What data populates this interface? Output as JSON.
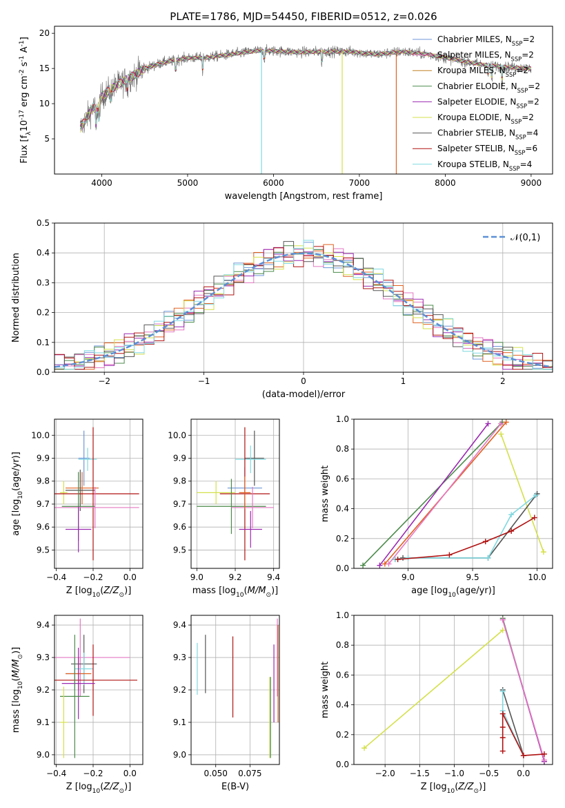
{
  "figure_title": "PLATE=1786, MJD=54450, FIBERID=0512, z=0.026",
  "chart_data": [
    {
      "id": "spectrum",
      "type": "line",
      "xlabel": "wavelength [Angstrom, rest frame]",
      "ylabel": "Flux [f$_\\lambda$10$^{-17}$ erg cm$^{-2}$ s$^{-1}$ A$^{-1}$]",
      "xlim": [
        3450,
        9250
      ],
      "ylim": [
        0,
        21
      ],
      "xticks": [
        4000,
        5000,
        6000,
        7000,
        8000,
        9000
      ],
      "yticks": [
        5,
        10,
        15,
        20
      ],
      "grid": false,
      "legend": "top-right",
      "continuum": {
        "x": [
          3750,
          3800,
          3900,
          3950,
          4000,
          4100,
          4200,
          4300,
          4400,
          4500,
          4700,
          5000,
          5200,
          5500,
          5800,
          6000,
          6300,
          6600,
          6900,
          7200,
          7500,
          7800,
          8100,
          8400,
          8700,
          9000
        ],
        "y": [
          6.5,
          7.5,
          9.5,
          9.0,
          11.0,
          12.0,
          12.8,
          13.5,
          14.2,
          15.0,
          15.8,
          16.5,
          16.5,
          17.0,
          17.5,
          17.5,
          17.3,
          17.4,
          17.4,
          17.0,
          17.4,
          17.0,
          16.3,
          15.6,
          15.2,
          15.0
        ]
      },
      "series": [
        {
          "name": "Chabrier MILES, N$_{SSP}$=2",
          "color": "#6c96d8"
        },
        {
          "name": "Salpeter MILES, N$_{SSP}$=2",
          "color": "#e377c2"
        },
        {
          "name": "Kroupa MILES, N$_{SSP}$=2",
          "color": "#c08020"
        },
        {
          "name": "Chabrier ELODIE, N$_{SSP}$=2",
          "color": "#4a8a4a"
        },
        {
          "name": "Salpeter ELODIE, N$_{SSP}$=2",
          "color": "#9a28b0"
        },
        {
          "name": "Kroupa ELODIE, N$_{SSP}$=2",
          "color": "#d4e04a"
        },
        {
          "name": "Chabrier STELIB, N$_{SSP}$=4",
          "color": "#555555"
        },
        {
          "name": "Salpeter STELIB, N$_{SSP}$=6",
          "color": "#b01010"
        },
        {
          "name": "Kroupa STELIB, N$_{SSP}$=4",
          "color": "#7fd8e0"
        }
      ]
    },
    {
      "id": "residual-histogram",
      "type": "line",
      "xlabel": "(data-model)/error",
      "ylabel": "Normed distribution",
      "xlim": [
        -2.5,
        2.5
      ],
      "ylim": [
        0,
        0.5
      ],
      "xticks": [
        -2,
        -1,
        0,
        1,
        2
      ],
      "yticks": [
        0.0,
        0.1,
        0.2,
        0.3,
        0.4,
        0.5
      ],
      "grid": true,
      "legend": "top-right",
      "gaussian": {
        "label": "$\\mathcal{N}(0,1)$",
        "mean": 0,
        "sigma": 1,
        "color": "#5b8fd6"
      },
      "bin_width": 0.1,
      "series_colors": [
        "#6c96d8",
        "#e377c2",
        "#e06020",
        "#4a8a4a",
        "#9a28b0",
        "#d4e04a",
        "#555555",
        "#b01010",
        "#7fd8e0"
      ]
    },
    {
      "id": "age-vs-Z",
      "type": "scatter",
      "xlabel": "Z [log$_{10}$($Z/Z_\\odot$)]",
      "ylabel": "age  [log$_{10}$($age/yr$)]",
      "xlim": [
        -0.41,
        0.07
      ],
      "ylim": [
        9.42,
        10.07
      ],
      "xticks": [
        -0.4,
        -0.2,
        0.0
      ],
      "yticks": [
        9.5,
        9.6,
        9.7,
        9.8,
        9.9,
        10.0
      ],
      "grid": true,
      "points": [
        {
          "x": -0.25,
          "y": 9.9,
          "xerr": 0.03,
          "yerr": 0.12,
          "color": "#6c96d8"
        },
        {
          "x": -0.23,
          "y": 9.895,
          "xerr": 0.05,
          "yerr": 0.05,
          "color": "#7fd8e0"
        },
        {
          "x": -0.26,
          "y": 9.77,
          "xerr": 0.09,
          "yerr": 0.07,
          "color": "#e06020"
        },
        {
          "x": -0.27,
          "y": 9.76,
          "xerr": 0.08,
          "yerr": 0.09,
          "color": "#555555"
        },
        {
          "x": -0.36,
          "y": 9.75,
          "xerr": 0.02,
          "yerr": 0.05,
          "color": "#d4e04a"
        },
        {
          "x": -0.2,
          "y": 9.745,
          "xerr": 0.25,
          "yerr": 0.29,
          "color": "#b01010"
        },
        {
          "x": -0.28,
          "y": 9.69,
          "xerr": 0.09,
          "yerr": 0.15,
          "color": "#4a8a4a"
        },
        {
          "x": -0.19,
          "y": 9.685,
          "xerr": 0.24,
          "yerr": 0.09,
          "color": "#e377c2"
        },
        {
          "x": -0.28,
          "y": 9.59,
          "xerr": 0.07,
          "yerr": 0.1,
          "color": "#9a28b0"
        }
      ]
    },
    {
      "id": "age-vs-mass",
      "type": "scatter",
      "xlabel": "mass [log$_{10}$($M/M_\\odot$)]",
      "ylabel": "",
      "xlim": [
        8.97,
        9.43
      ],
      "ylim": [
        9.42,
        10.07
      ],
      "xticks": [
        9.0,
        9.2,
        9.4
      ],
      "yticks": [
        9.5,
        9.6,
        9.7,
        9.8,
        9.9,
        10.0
      ],
      "grid": true,
      "points": [
        {
          "x": 9.3,
          "y": 9.9,
          "xerr": 0.05,
          "yerr": 0.12,
          "color": "#555555"
        },
        {
          "x": 9.28,
          "y": 9.895,
          "xerr": 0.08,
          "yerr": 0.06,
          "color": "#7fd8e0"
        },
        {
          "x": 9.25,
          "y": 9.77,
          "xerr": 0.09,
          "yerr": 0.09,
          "color": "#6c96d8"
        },
        {
          "x": 9.1,
          "y": 9.75,
          "xerr": 0.1,
          "yerr": 0.05,
          "color": "#d4e04a"
        },
        {
          "x": 9.25,
          "y": 9.745,
          "xerr": 0.13,
          "yerr": 0.29,
          "color": "#b01010"
        },
        {
          "x": 9.18,
          "y": 9.69,
          "xerr": 0.18,
          "yerr": 0.12,
          "color": "#4a8a4a"
        },
        {
          "x": 9.29,
          "y": 9.685,
          "xerr": 0.11,
          "yerr": 0.09,
          "color": "#e377c2"
        },
        {
          "x": 9.28,
          "y": 9.59,
          "xerr": 0.06,
          "yerr": 0.08,
          "color": "#9a28b0"
        },
        {
          "x": 9.25,
          "y": 9.75,
          "xerr": 0.03,
          "yerr": 0.07,
          "color": "#e06020"
        }
      ]
    },
    {
      "id": "mass-weight-vs-age",
      "type": "line",
      "xlabel": "age  [log$_{10}$($age/yr$)]",
      "ylabel": "mass weight",
      "xlim": [
        8.58,
        10.12
      ],
      "ylim": [
        0,
        1
      ],
      "xticks": [
        9.0,
        9.5,
        10.0
      ],
      "yticks": [
        0.0,
        0.2,
        0.4,
        0.6,
        0.8,
        1.0
      ],
      "grid": true,
      "series": [
        {
          "color": "#4a8a4a",
          "x": [
            8.65,
            9.73
          ],
          "y": [
            0.02,
            0.98
          ]
        },
        {
          "color": "#9a28b0",
          "x": [
            8.78,
            9.62
          ],
          "y": [
            0.02,
            0.97
          ]
        },
        {
          "color": "#e06020",
          "x": [
            8.82,
            9.76
          ],
          "y": [
            0.03,
            0.98
          ]
        },
        {
          "color": "#e377c2",
          "x": [
            8.85,
            9.72
          ],
          "y": [
            0.03,
            0.97
          ]
        },
        {
          "color": "#d4e04a",
          "x": [
            9.72,
            10.05
          ],
          "y": [
            0.9,
            0.11
          ]
        },
        {
          "color": "#555555",
          "x": [
            8.9,
            8.96,
            9.62,
            10.0
          ],
          "y": [
            0.06,
            0.07,
            0.07,
            0.5
          ]
        },
        {
          "color": "#7fd8e0",
          "x": [
            8.9,
            9.0,
            9.62,
            9.8,
            9.99
          ],
          "y": [
            0.06,
            0.07,
            0.07,
            0.36,
            0.49
          ]
        },
        {
          "color": "#b01010",
          "x": [
            8.92,
            9.32,
            9.6,
            9.8,
            9.98
          ],
          "y": [
            0.06,
            0.09,
            0.18,
            0.25,
            0.34
          ]
        }
      ]
    },
    {
      "id": "mass-vs-Z",
      "type": "scatter",
      "xlabel": "Z [log$_{10}$($Z/Z_\\odot$)]",
      "ylabel": "mass [log$_{10}$($M/M_\\odot$)]",
      "xlim": [
        -0.41,
        0.07
      ],
      "ylim": [
        8.97,
        9.43
      ],
      "xticks": [
        -0.4,
        -0.2,
        0.0
      ],
      "yticks": [
        9.0,
        9.1,
        9.2,
        9.3,
        9.4
      ],
      "grid": true,
      "points": [
        {
          "x": -0.27,
          "y": 9.3,
          "xerr": 0.27,
          "yerr": 0.12,
          "color": "#e377c2"
        },
        {
          "x": -0.25,
          "y": 9.28,
          "xerr": 0.07,
          "yerr": 0.09,
          "color": "#555555"
        },
        {
          "x": -0.25,
          "y": 9.265,
          "xerr": 0.05,
          "yerr": 0.05,
          "color": "#7fd8e0"
        },
        {
          "x": -0.3,
          "y": 9.25,
          "xerr": 0.05,
          "yerr": 0.05,
          "color": "#6c96d8"
        },
        {
          "x": -0.28,
          "y": 9.25,
          "xerr": 0.07,
          "yerr": 0.05,
          "color": "#e06020"
        },
        {
          "x": -0.2,
          "y": 9.23,
          "xerr": 0.24,
          "yerr": 0.11,
          "color": "#b01010"
        },
        {
          "x": -0.28,
          "y": 9.22,
          "xerr": 0.09,
          "yerr": 0.11,
          "color": "#9a28b0"
        },
        {
          "x": -0.3,
          "y": 9.18,
          "xerr": 0.08,
          "yerr": 0.19,
          "color": "#4a8a4a"
        },
        {
          "x": -0.36,
          "y": 9.1,
          "xerr": 0.02,
          "yerr": 0.11,
          "color": "#d4e04a"
        }
      ]
    },
    {
      "id": "mass-vs-EBV",
      "type": "scatter",
      "xlabel": "E(B-V)",
      "ylabel": "",
      "xlim": [
        0.032,
        0.0965
      ],
      "ylim": [
        8.97,
        9.43
      ],
      "xticks": [
        0.05,
        0.075
      ],
      "xticklabels": [
        "0.050",
        "0.075"
      ],
      "yticks": [
        9.0,
        9.1,
        9.2,
        9.3,
        9.4
      ],
      "grid": true,
      "points": [
        {
          "x": 0.0365,
          "y": 9.265,
          "xerr": 0,
          "yerr": 0.08,
          "color": "#7fd8e0"
        },
        {
          "x": 0.0425,
          "y": 9.28,
          "xerr": 0,
          "yerr": 0.09,
          "color": "#555555"
        },
        {
          "x": 0.0625,
          "y": 9.24,
          "xerr": 0,
          "yerr": 0.125,
          "color": "#b01010"
        },
        {
          "x": 0.0895,
          "y": 9.115,
          "xerr": 0,
          "yerr": 0.125,
          "color": "#d4e04a"
        },
        {
          "x": 0.09,
          "y": 9.115,
          "xerr": 0,
          "yerr": 0.125,
          "color": "#4a8a4a"
        },
        {
          "x": 0.0925,
          "y": 9.22,
          "xerr": 0,
          "yerr": 0.12,
          "color": "#9a28b0"
        },
        {
          "x": 0.095,
          "y": 9.3,
          "xerr": 0,
          "yerr": 0.12,
          "color": "#e377c2"
        },
        {
          "x": 0.0955,
          "y": 9.25,
          "xerr": 0,
          "yerr": 0.15,
          "color": "#e06020"
        }
      ]
    },
    {
      "id": "mass-weight-vs-Z",
      "type": "line",
      "xlabel": "Z [log$_{10}$($Z/Z_\\odot$)]",
      "ylabel": "mass weight",
      "xlim": [
        -2.45,
        0.42
      ],
      "ylim": [
        0,
        1
      ],
      "xticks": [
        -2.0,
        -1.5,
        -1.0,
        -0.5,
        0.0
      ],
      "yticks": [
        0.0,
        0.2,
        0.4,
        0.6,
        0.8,
        1.0
      ],
      "grid": true,
      "series": [
        {
          "color": "#d4e04a",
          "x": [
            -2.3,
            -0.3
          ],
          "y": [
            0.11,
            0.9
          ]
        },
        {
          "color": "#4a8a4a",
          "x": [
            -0.3,
            0.3
          ],
          "y": [
            0.98,
            0.02
          ]
        },
        {
          "color": "#9a28b0",
          "x": [
            -0.3,
            0.3
          ],
          "y": [
            0.97,
            0.02
          ]
        },
        {
          "color": "#e377c2",
          "x": [
            -0.3,
            0.3
          ],
          "y": [
            0.97,
            0.03
          ]
        },
        {
          "color": "#555555",
          "x": [
            -0.3,
            0.0
          ],
          "y": [
            0.5,
            0.06
          ]
        },
        {
          "color": "#7fd8e0",
          "x": [
            -0.3,
            -0.3,
            0.0
          ],
          "y": [
            0.49,
            0.36,
            0.06
          ]
        },
        {
          "color": "#b01010",
          "x": [
            -0.3,
            -0.3,
            -0.3,
            -0.3,
            0.0,
            0.3
          ],
          "y": [
            0.09,
            0.18,
            0.25,
            0.34,
            0.06,
            0.07
          ]
        }
      ]
    }
  ]
}
